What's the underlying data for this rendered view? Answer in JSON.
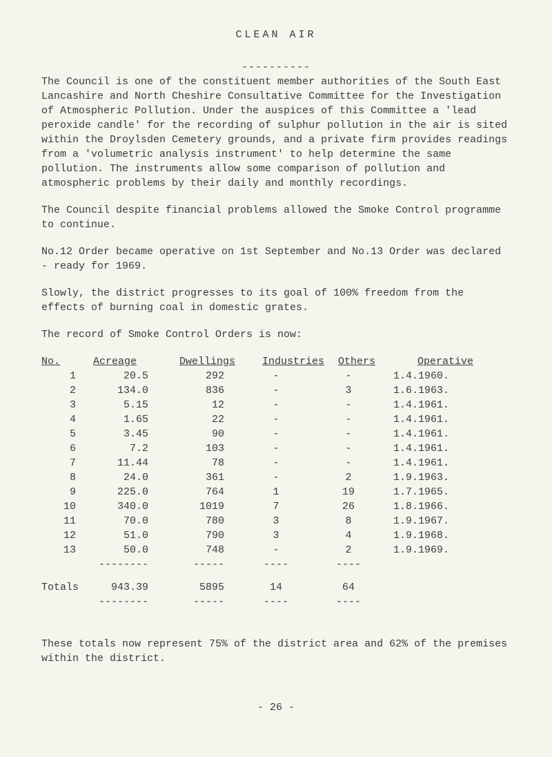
{
  "title": "CLEAN   AIR",
  "title_underline": "----------",
  "paragraphs": {
    "p1": "The Council is one of the constituent member authorities of the South East Lancashire and North Cheshire Consultative Committee for the Investigation of Atmospheric Pollution.    Under the auspices of this Committee a 'lead peroxide candle' for the recording of sulphur pollution in the air is sited within the Droylsden Cemetery grounds, and  a private firm provides readings from a 'volumetric analysis instrument' to help determine the same pollution. The instruments allow some comparison of pollution and atmospheric problems by their daily and monthly recordings.",
    "p2": "The Council despite financial problems allowed the Smoke Control programme to continue.",
    "p3": "No.12 Order became operative on 1st September and No.13 Order was declared - ready for 1969.",
    "p4": "Slowly, the district progresses to its goal of 100% freedom from the effects of burning coal in domestic grates.",
    "p5": "The record of Smoke Control Orders is now:"
  },
  "table": {
    "headers": {
      "no": "No.",
      "acreage": "Acreage",
      "dwellings": "Dwellings",
      "industries": "Industries",
      "others": "Others",
      "operative": "Operative"
    },
    "rows": [
      {
        "no": "1",
        "acreage": "20.5",
        "dwellings": "292",
        "industries": "-",
        "others": "-",
        "operative": "1.4.1960."
      },
      {
        "no": "2",
        "acreage": "134.0",
        "dwellings": "836",
        "industries": "-",
        "others": "3",
        "operative": "1.6.1963."
      },
      {
        "no": "3",
        "acreage": "5.15",
        "dwellings": "12",
        "industries": "-",
        "others": "-",
        "operative": "1.4.1961."
      },
      {
        "no": "4",
        "acreage": "1.65",
        "dwellings": "22",
        "industries": "-",
        "others": "-",
        "operative": "1.4.1961."
      },
      {
        "no": "5",
        "acreage": "3.45",
        "dwellings": "90",
        "industries": "-",
        "others": "-",
        "operative": "1.4.1961."
      },
      {
        "no": "6",
        "acreage": "7.2",
        "dwellings": "103",
        "industries": "-",
        "others": "-",
        "operative": "1.4.1961."
      },
      {
        "no": "7",
        "acreage": "11.44",
        "dwellings": "78",
        "industries": "-",
        "others": "-",
        "operative": "1.4.1961."
      },
      {
        "no": "8",
        "acreage": "24.0",
        "dwellings": "361",
        "industries": "-",
        "others": "2",
        "operative": "1.9.1963."
      },
      {
        "no": "9",
        "acreage": "225.0",
        "dwellings": "764",
        "industries": "1",
        "others": "19",
        "operative": "1.7.1965."
      },
      {
        "no": "10",
        "acreage": "340.0",
        "dwellings": "1019",
        "industries": "7",
        "others": "26",
        "operative": "1.8.1966."
      },
      {
        "no": "11",
        "acreage": "70.0",
        "dwellings": "780",
        "industries": "3",
        "others": "8",
        "operative": "1.9.1967."
      },
      {
        "no": "12",
        "acreage": "51.0",
        "dwellings": "790",
        "industries": "3",
        "others": "4",
        "operative": "1.9.1968."
      },
      {
        "no": "13",
        "acreage": "50.0",
        "dwellings": "748",
        "industries": "-",
        "others": "2",
        "operative": "1.9.1969."
      }
    ],
    "divider1": {
      "acreage": "--------",
      "dwellings": "-----",
      "industries": "----",
      "others": "----"
    },
    "totals": {
      "label": "Totals",
      "acreage": "943.39",
      "dwellings": "5895",
      "industries": "14",
      "others": "64"
    },
    "divider2": {
      "acreage": "--------",
      "dwellings": "-----",
      "industries": "----",
      "others": "----"
    }
  },
  "footer": "These totals now represent 75% of the district area and 62% of the premises within the district.",
  "page_number": "-  26  -"
}
